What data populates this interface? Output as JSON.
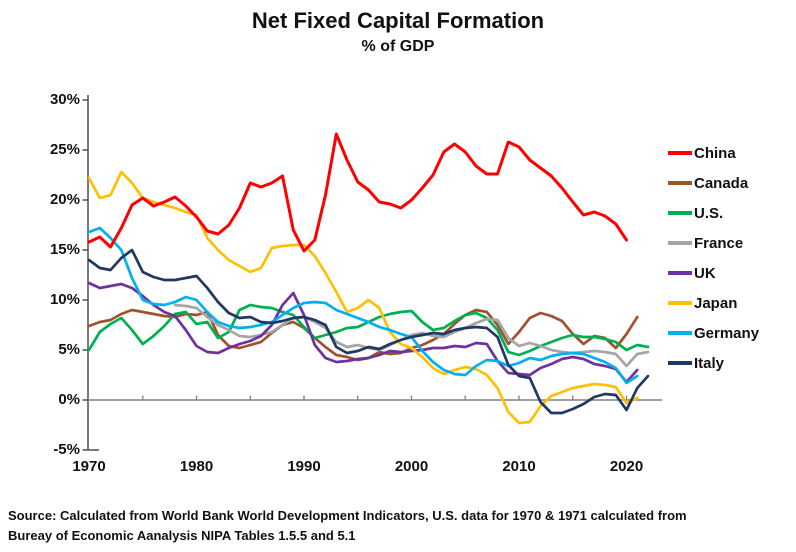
{
  "title": "Net Fixed Capital Formation",
  "subtitle": "% of GDP",
  "source": {
    "line1": "Source:  Calculated from World Bank World Development Indicators, U.S. data for 1970 & 1971 calculated from",
    "line2": "Bureay of Economic Aanalysis NIPA Tables 1.5.5 and 5.1"
  },
  "colors": {
    "axis": "#595959",
    "zero_line": "#808080",
    "text": "#111111"
  },
  "chart_data": {
    "type": "line",
    "title": "Net Fixed Capital Formation",
    "subtitle": "% of GDP",
    "xlabel": "",
    "ylabel": "% of GDP",
    "xlim": [
      1970,
      2022.5
    ],
    "ylim": [
      -5,
      30
    ],
    "grid": "zero-line-only",
    "legend_position": "right",
    "x_start_year": 1970,
    "x": [
      1970,
      1971,
      1972,
      1973,
      1974,
      1975,
      1976,
      1977,
      1978,
      1979,
      1980,
      1981,
      1982,
      1983,
      1984,
      1985,
      1986,
      1987,
      1988,
      1989,
      1990,
      1991,
      1992,
      1993,
      1994,
      1995,
      1996,
      1997,
      1998,
      1999,
      2000,
      2001,
      2002,
      2003,
      2004,
      2005,
      2006,
      2007,
      2008,
      2009,
      2010,
      2011,
      2012,
      2013,
      2014,
      2015,
      2016,
      2017,
      2018,
      2019,
      2020,
      2021,
      2022
    ],
    "xtick_labels": [
      "1970",
      "1980",
      "1990",
      "2000",
      "2010",
      "2020"
    ],
    "xtick_years": [
      1970,
      1980,
      1990,
      2000,
      2010,
      2020
    ],
    "ytick_labels": [
      "30%",
      "25%",
      "20%",
      "15%",
      "10%",
      "5%",
      "0%",
      "-5%"
    ],
    "ytick_values": [
      30,
      25,
      20,
      15,
      10,
      5,
      0,
      -5
    ],
    "series": [
      {
        "name": "China",
        "color": "#FF0000",
        "values": [
          15.8,
          16.3,
          15.3,
          17.2,
          19.5,
          20.2,
          19.4,
          19.8,
          20.3,
          19.4,
          18.3,
          16.9,
          16.6,
          17.5,
          19.2,
          21.7,
          21.3,
          21.7,
          22.4,
          17.0,
          14.9,
          16.0,
          20.5,
          26.6,
          24.0,
          21.8,
          21.0,
          19.8,
          19.6,
          19.2,
          20.0,
          21.2,
          22.5,
          24.8,
          25.6,
          24.8,
          23.4,
          22.6,
          22.6,
          25.8,
          25.3,
          24.0,
          23.2,
          22.4,
          21.2,
          19.8,
          18.5,
          18.8,
          18.4,
          17.6,
          16.0,
          null,
          null
        ]
      },
      {
        "name": "Canada",
        "color": "#A0522D",
        "values": [
          7.4,
          7.8,
          8.0,
          8.6,
          9.0,
          8.8,
          8.6,
          8.4,
          8.3,
          8.6,
          8.5,
          8.8,
          6.5,
          5.4,
          5.2,
          5.5,
          5.8,
          6.7,
          7.5,
          7.8,
          7.2,
          6.2,
          5.3,
          4.5,
          4.3,
          4.0,
          4.2,
          4.8,
          4.6,
          4.7,
          5.2,
          5.5,
          6.0,
          6.6,
          7.6,
          8.5,
          9.0,
          8.8,
          7.5,
          5.6,
          6.8,
          8.2,
          8.7,
          8.4,
          7.9,
          6.6,
          5.6,
          6.4,
          6.2,
          5.2,
          6.6,
          8.3,
          null
        ]
      },
      {
        "name": "U.S.",
        "color": "#00B050",
        "values": [
          5.0,
          6.8,
          7.6,
          8.2,
          7.0,
          5.6,
          6.4,
          7.4,
          8.6,
          8.8,
          7.6,
          7.8,
          6.2,
          6.8,
          9.0,
          9.5,
          9.3,
          9.2,
          8.8,
          8.5,
          7.3,
          6.2,
          6.5,
          6.8,
          7.2,
          7.3,
          7.8,
          8.3,
          8.6,
          8.8,
          8.9,
          7.8,
          7.0,
          7.2,
          7.9,
          8.5,
          8.7,
          8.2,
          7.0,
          4.8,
          4.5,
          4.9,
          5.4,
          5.8,
          6.2,
          6.5,
          6.3,
          6.3,
          6.1,
          5.8,
          5.0,
          5.5,
          5.3
        ]
      },
      {
        "name": "France",
        "color": "#A5A5A5",
        "values": [
          null,
          null,
          null,
          null,
          null,
          null,
          null,
          null,
          9.5,
          9.4,
          9.2,
          8.3,
          7.5,
          7.0,
          6.4,
          6.3,
          6.5,
          6.8,
          7.5,
          8.2,
          8.3,
          7.8,
          7.2,
          5.8,
          5.3,
          5.5,
          5.2,
          5.0,
          5.5,
          6.0,
          6.5,
          6.7,
          6.4,
          6.3,
          6.8,
          7.2,
          7.7,
          8.1,
          8.0,
          6.2,
          5.4,
          5.7,
          5.4,
          5.0,
          4.8,
          4.7,
          4.8,
          4.9,
          4.8,
          4.6,
          3.4,
          4.6,
          4.8
        ]
      },
      {
        "name": "UK",
        "color": "#7030A0",
        "values": [
          11.7,
          11.2,
          11.4,
          11.6,
          11.2,
          10.4,
          9.5,
          8.8,
          8.4,
          7.0,
          5.4,
          4.8,
          4.7,
          5.2,
          5.6,
          5.9,
          6.4,
          7.5,
          9.5,
          10.7,
          8.5,
          5.5,
          4.2,
          3.8,
          3.9,
          4.1,
          4.2,
          4.5,
          4.9,
          4.8,
          4.9,
          5.0,
          5.2,
          5.2,
          5.4,
          5.3,
          5.7,
          5.6,
          3.9,
          2.7,
          2.6,
          2.5,
          3.2,
          3.6,
          4.1,
          4.3,
          4.1,
          3.6,
          3.4,
          3.1,
          1.8,
          3.0,
          null
        ]
      },
      {
        "name": "Japan",
        "color": "#FFC000",
        "values": [
          22.2,
          20.2,
          20.5,
          22.8,
          21.7,
          20.2,
          19.8,
          19.5,
          19.2,
          18.8,
          18.5,
          16.2,
          15.0,
          14.0,
          13.4,
          12.8,
          13.2,
          15.2,
          15.4,
          15.5,
          15.5,
          14.4,
          12.7,
          10.8,
          8.8,
          9.2,
          10.0,
          9.2,
          6.8,
          5.6,
          5.2,
          4.3,
          3.2,
          2.6,
          3.0,
          3.3,
          3.1,
          2.5,
          1.2,
          -1.2,
          -2.3,
          -2.2,
          -0.6,
          0.4,
          0.8,
          1.2,
          1.4,
          1.6,
          1.5,
          1.3,
          -0.3,
          0.2,
          null
        ]
      },
      {
        "name": "Germany",
        "color": "#00B0F0",
        "values": [
          16.8,
          17.2,
          16.2,
          15.0,
          12.2,
          10.0,
          9.6,
          9.5,
          9.8,
          10.3,
          10.0,
          8.8,
          7.8,
          7.4,
          7.2,
          7.3,
          7.5,
          7.8,
          8.5,
          9.2,
          9.7,
          9.8,
          9.7,
          9.0,
          8.6,
          8.2,
          7.8,
          7.3,
          7.0,
          6.6,
          6.3,
          4.9,
          3.8,
          3.0,
          2.6,
          2.5,
          3.4,
          4.0,
          3.9,
          3.4,
          3.7,
          4.2,
          4.0,
          4.4,
          4.6,
          4.7,
          4.6,
          4.2,
          3.8,
          3.2,
          1.7,
          2.4,
          null
        ]
      },
      {
        "name": "Italy",
        "color": "#1F3864",
        "values": [
          14.0,
          13.2,
          13.0,
          14.2,
          15.0,
          12.8,
          12.3,
          12.0,
          12.0,
          12.2,
          12.4,
          11.2,
          9.8,
          8.7,
          8.2,
          8.3,
          7.8,
          7.7,
          7.9,
          8.2,
          8.3,
          8.0,
          7.5,
          5.3,
          4.7,
          4.9,
          5.3,
          5.1,
          5.6,
          6.0,
          6.3,
          6.5,
          6.7,
          6.6,
          7.0,
          7.2,
          7.3,
          7.2,
          6.3,
          3.5,
          2.4,
          2.2,
          -0.2,
          -1.3,
          -1.3,
          -0.9,
          -0.4,
          0.3,
          0.6,
          0.5,
          -1.0,
          1.2,
          2.4
        ]
      }
    ]
  }
}
